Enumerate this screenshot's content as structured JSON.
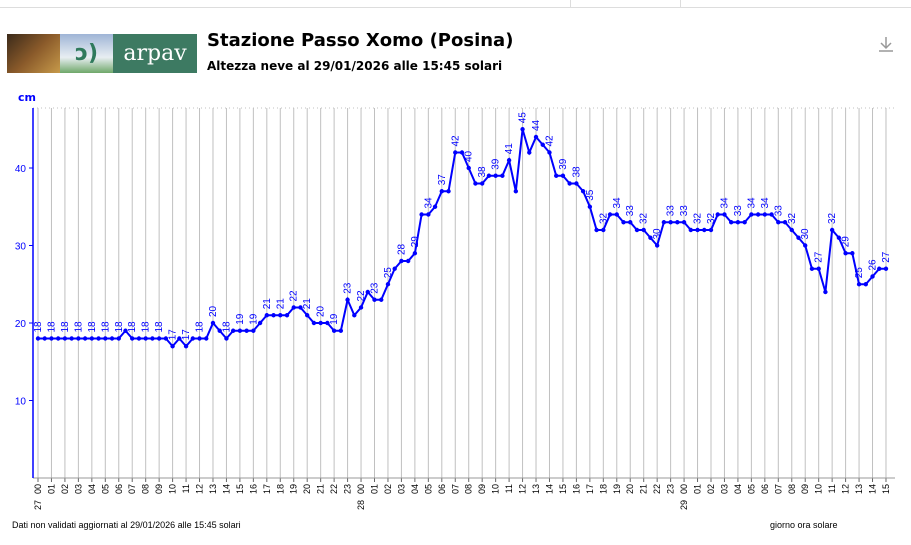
{
  "header": {
    "logo_text": "arpav",
    "title": "Stazione Passo Xomo (Posina)",
    "subtitle": "Altezza neve al 29/01/2026 alle 15:45 solari",
    "download_icon": "download-icon"
  },
  "footer": {
    "note": "Dati non validati aggiornati al 29/01/2026 alle 15:45 solari",
    "xlabel": "giorno ora solare"
  },
  "colors": {
    "line": "#0000ff",
    "grid": "#c0c0c0"
  },
  "chart_data": {
    "type": "line",
    "title": "Altezza neve al 29/01/2026 alle 15:45 solari",
    "ylabel": "cm",
    "xlabel": "giorno ora solare",
    "ylim": [
      0,
      47
    ],
    "yticks": [
      10,
      20,
      30,
      40
    ],
    "x_hours_start": "27/01 00:00",
    "x_step_hours": 0.5,
    "day_labels": [
      {
        "hour": 0,
        "label": "27"
      },
      {
        "hour": 24,
        "label": "28"
      },
      {
        "hour": 48,
        "label": "29"
      }
    ],
    "hour_ticks": [
      "00",
      "01",
      "02",
      "03",
      "04",
      "05",
      "06",
      "07",
      "08",
      "09",
      "10",
      "11",
      "12",
      "13",
      "14",
      "15",
      "16",
      "17",
      "18",
      "19",
      "20",
      "21",
      "22",
      "23",
      "00",
      "01",
      "02",
      "03",
      "04",
      "05",
      "06",
      "07",
      "08",
      "09",
      "10",
      "11",
      "12",
      "13",
      "14",
      "15",
      "16",
      "17",
      "18",
      "19",
      "20",
      "21",
      "22",
      "23",
      "00",
      "01",
      "02",
      "03",
      "04",
      "05",
      "06",
      "07",
      "08",
      "09",
      "10",
      "11",
      "12",
      "13",
      "14",
      "15"
    ],
    "series": [
      {
        "name": "Altezza neve",
        "values": [
          18,
          18,
          18,
          18,
          18,
          18,
          18,
          18,
          18,
          18,
          18,
          18,
          18,
          19,
          18,
          18,
          18,
          18,
          18,
          18,
          17,
          18,
          17,
          18,
          18,
          18,
          20,
          19,
          18,
          19,
          19,
          19,
          19,
          20,
          21,
          21,
          21,
          21,
          22,
          22,
          21,
          20,
          20,
          20,
          19,
          19,
          23,
          21,
          22,
          24,
          23,
          23,
          25,
          27,
          28,
          28,
          29,
          34,
          34,
          35,
          37,
          37,
          42,
          42,
          40,
          38,
          38,
          39,
          39,
          39,
          41,
          37,
          45,
          42,
          44,
          43,
          42,
          39,
          39,
          38,
          38,
          37,
          35,
          32,
          32,
          34,
          34,
          33,
          33,
          32,
          32,
          31,
          30,
          33,
          33,
          33,
          33,
          32,
          32,
          32,
          32,
          34,
          34,
          33,
          33,
          33,
          34,
          34,
          34,
          34,
          33,
          33,
          32,
          31,
          30,
          27,
          27,
          24,
          32,
          31,
          29,
          29,
          25,
          25,
          26,
          27,
          27
        ]
      }
    ]
  }
}
